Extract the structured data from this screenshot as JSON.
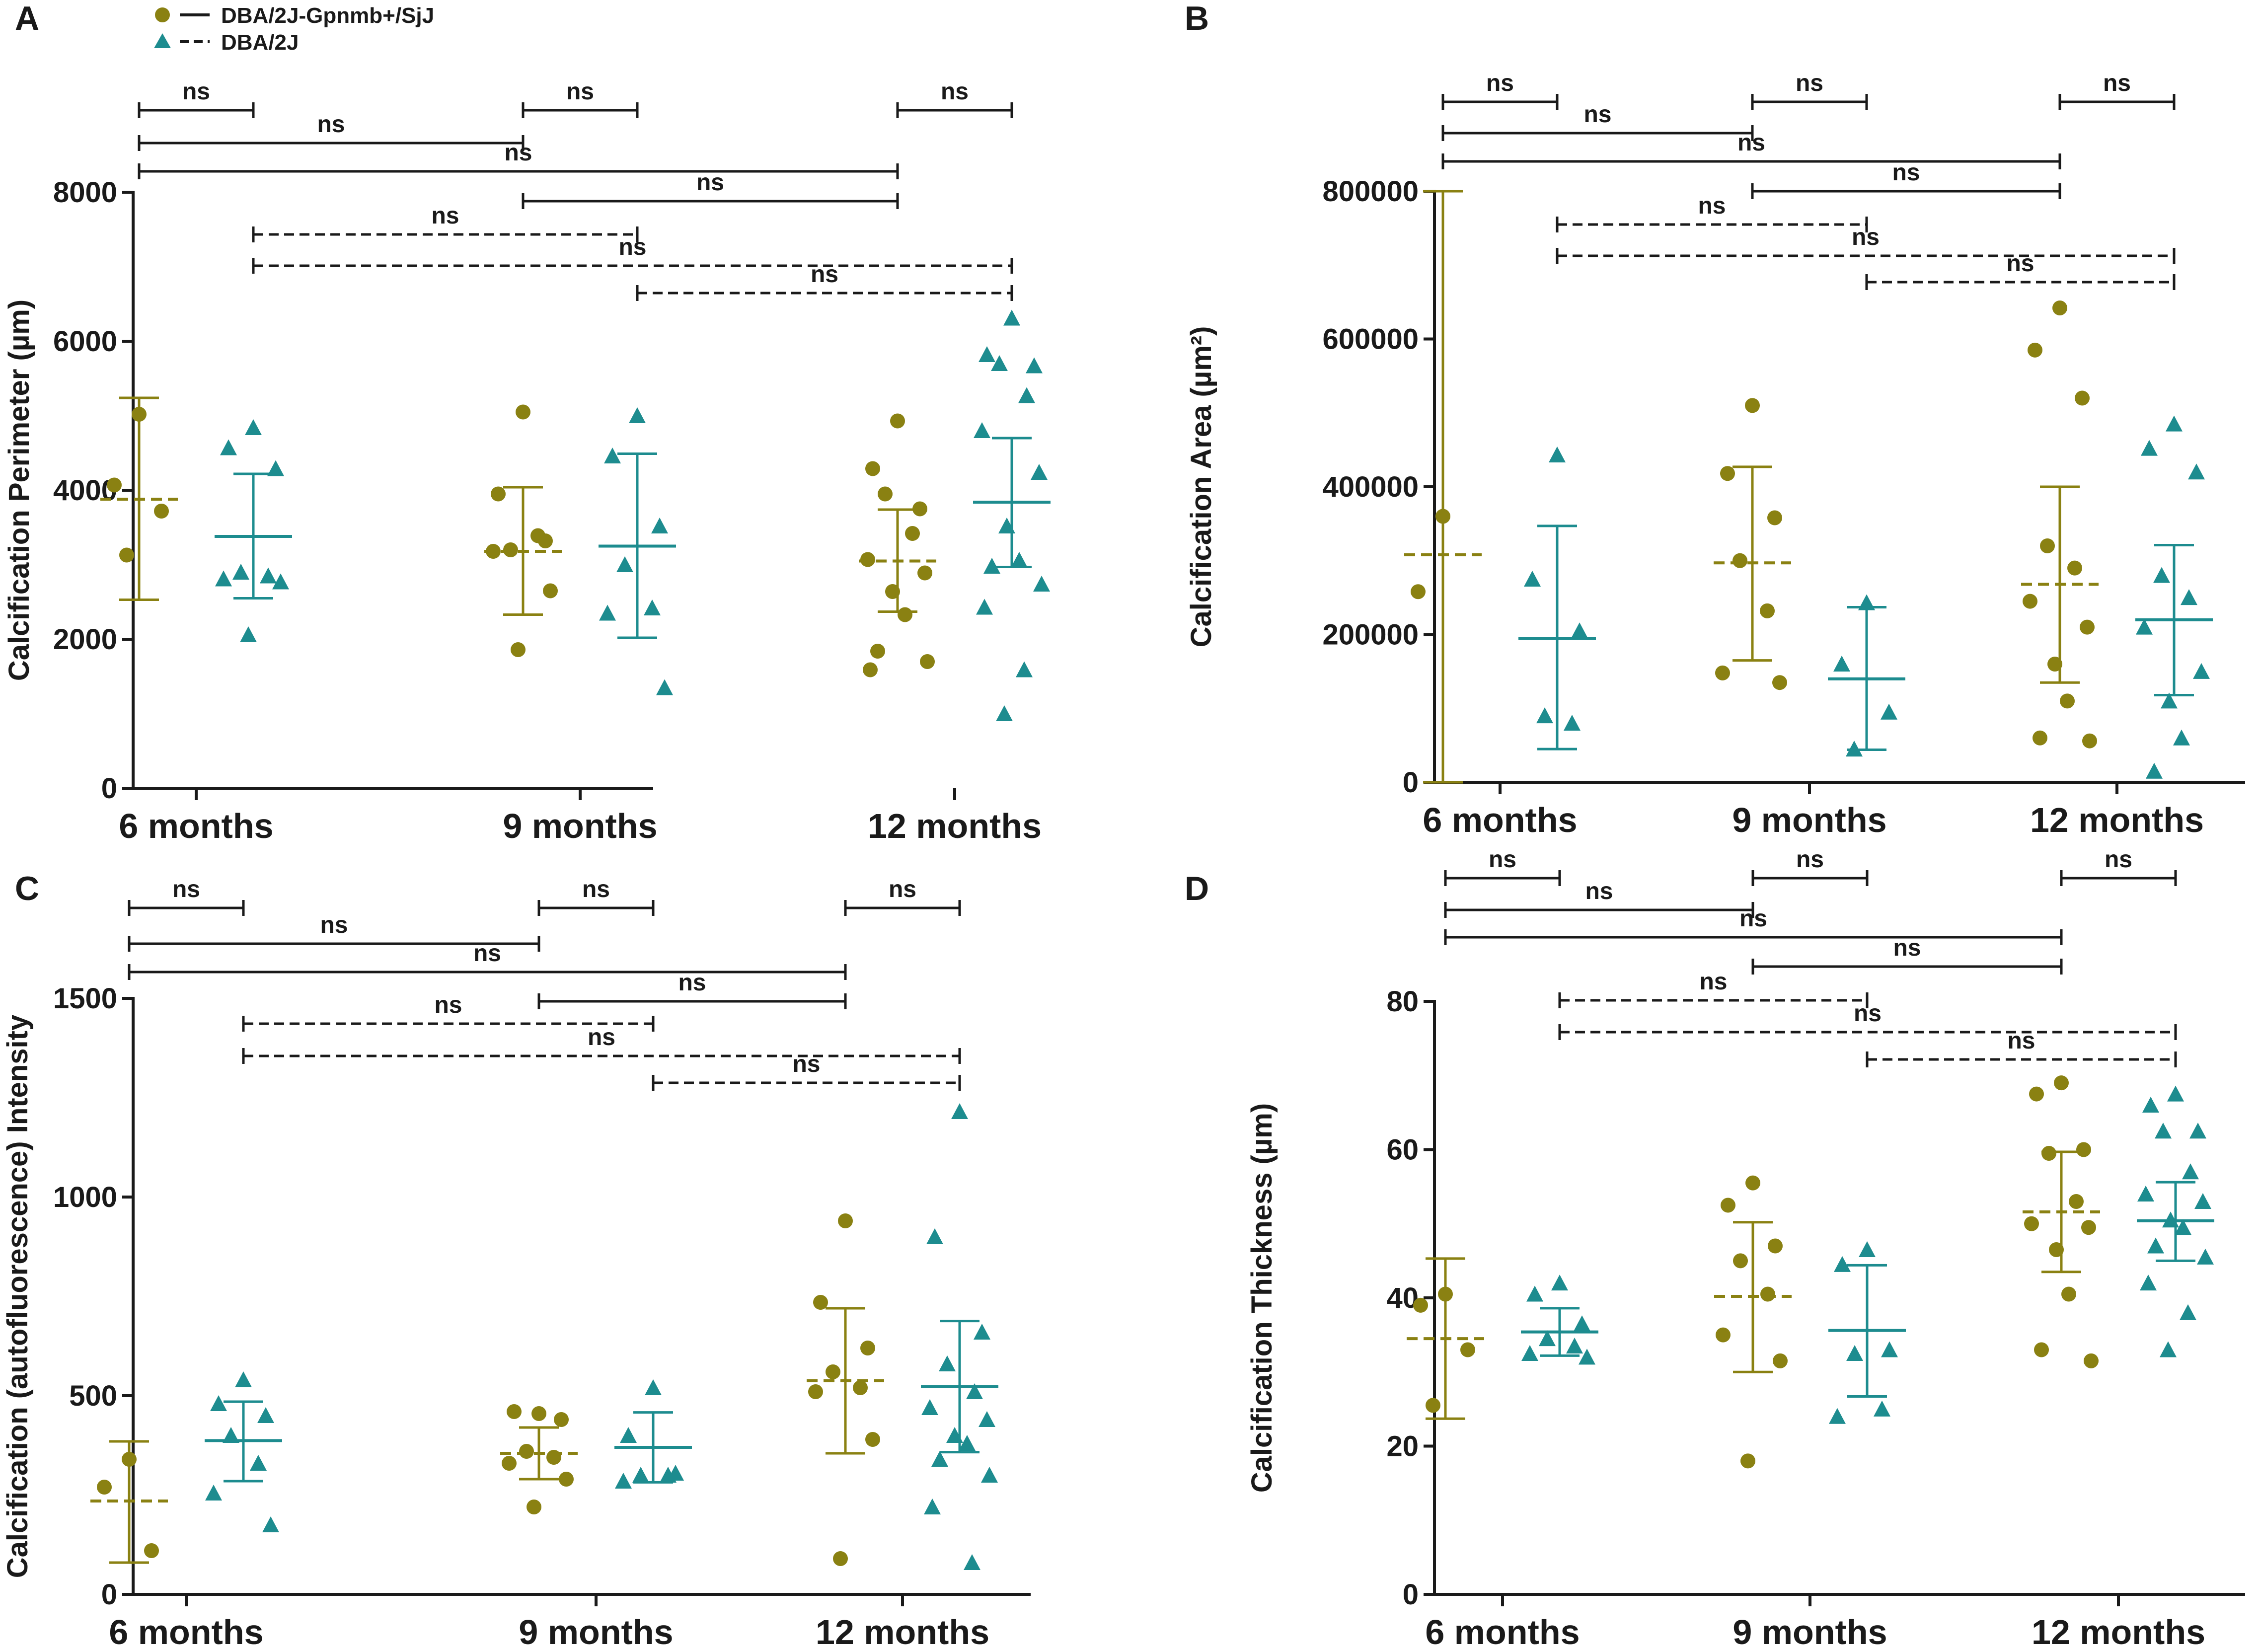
{
  "colors": {
    "olive": "#8a8112",
    "teal": "#1d8c8f",
    "axis": "#1a1a1a"
  },
  "legend": [
    {
      "label": "DBA/2J-Gpnmb+/SjJ",
      "marker": "circle",
      "line": "solid",
      "color": "#8a8112"
    },
    {
      "label": "DBA/2J",
      "marker": "triangle",
      "line": "dashed",
      "color": "#1d8c8f"
    }
  ],
  "chart_data": [
    {
      "panel": "A",
      "type": "scatter",
      "ylabel": "Calcification Perimeter (µm)",
      "ylim": [
        0,
        8000
      ],
      "yticks": [
        0,
        2000,
        4000,
        6000,
        8000
      ],
      "categories": [
        "6 months",
        "9 months",
        "12 months"
      ],
      "series": [
        {
          "name": "DBA/2J-Gpnmb+/SjJ",
          "marker": "circle",
          "mean_style": "dashed",
          "groups": [
            {
              "points": [
                5020,
                4070,
                3720,
                3130
              ],
              "mean": 3880,
              "sd": [
                2530,
                5240
              ]
            },
            {
              "points": [
                5050,
                3950,
                3320,
                3200,
                3390,
                3180,
                2650,
                1860
              ],
              "mean": 3180,
              "sd": [
                2330,
                4040
              ]
            },
            {
              "points": [
                4930,
                4290,
                3750,
                3950,
                3420,
                3070,
                2890,
                2640,
                2330,
                1840,
                1700,
                1590
              ],
              "mean": 3050,
              "sd": [
                2370,
                3740
              ]
            }
          ]
        },
        {
          "name": "DBA/2J",
          "marker": "triangle",
          "mean_style": "solid",
          "groups": [
            {
              "points": [
                4840,
                4570,
                4290,
                2900,
                2850,
                2810,
                2770,
                2060
              ],
              "mean": 3380,
              "sd": [
                2550,
                4220
              ]
            },
            {
              "points": [
                5000,
                4460,
                3520,
                3000,
                2420,
                2350,
                1350
              ],
              "mean": 3250,
              "sd": [
                2020,
                4490
              ]
            },
            {
              "points": [
                6310,
                5820,
                5670,
                5700,
                5270,
                4800,
                4240,
                3520,
                3060,
                2980,
                2740,
                2430,
                1590,
                1000
              ],
              "mean": 3840,
              "sd": [
                2970,
                4700
              ]
            }
          ]
        }
      ],
      "comparisons": [
        {
          "from": "6 months · DBA/2J-Gpnmb+/SjJ",
          "to": "6 months · DBA/2J",
          "label": "ns",
          "style": "solid"
        },
        {
          "from": "9 months · DBA/2J-Gpnmb+/SjJ",
          "to": "9 months · DBA/2J",
          "label": "ns",
          "style": "solid"
        },
        {
          "from": "12 months · DBA/2J-Gpnmb+/SjJ",
          "to": "12 months · DBA/2J",
          "label": "ns",
          "style": "solid"
        },
        {
          "from": "6 months · DBA/2J-Gpnmb+/SjJ",
          "to": "9 months · DBA/2J-Gpnmb+/SjJ",
          "label": "ns",
          "style": "solid"
        },
        {
          "from": "6 months · DBA/2J-Gpnmb+/SjJ",
          "to": "12 months · DBA/2J-Gpnmb+/SjJ",
          "label": "ns",
          "style": "solid"
        },
        {
          "from": "9 months · DBA/2J-Gpnmb+/SjJ",
          "to": "12 months · DBA/2J-Gpnmb+/SjJ",
          "label": "ns",
          "style": "solid"
        },
        {
          "from": "6 months · DBA/2J",
          "to": "9 months · DBA/2J",
          "label": "ns",
          "style": "dashed"
        },
        {
          "from": "6 months · DBA/2J",
          "to": "12 months · DBA/2J",
          "label": "ns",
          "style": "dashed"
        },
        {
          "from": "9 months · DBA/2J",
          "to": "12 months · DBA/2J",
          "label": "ns",
          "style": "dashed"
        }
      ]
    },
    {
      "panel": "B",
      "type": "scatter",
      "ylabel": "Calcification Area (µm²)",
      "ylim": [
        0,
        800000
      ],
      "yticks": [
        0,
        200000,
        400000,
        600000,
        800000
      ],
      "categories": [
        "6 months",
        "9 months",
        "12 months"
      ],
      "series": [
        {
          "name": "DBA/2J-Gpnmb+/SjJ",
          "marker": "circle",
          "mean_style": "dashed",
          "groups": [
            {
              "points": [
                360000,
                258000
              ],
              "mean": 308000,
              "sd": [
                0,
                800000
              ]
            },
            {
              "points": [
                510000,
                418000,
                358000,
                300000,
                232000,
                148000,
                135000
              ],
              "mean": 297000,
              "sd": [
                165000,
                427000
              ]
            },
            {
              "points": [
                642000,
                585000,
                520000,
                320000,
                290000,
                245000,
                210000,
                160000,
                110000,
                60000,
                56000
              ],
              "mean": 268000,
              "sd": [
                135000,
                400000
              ]
            }
          ]
        },
        {
          "name": "DBA/2J",
          "marker": "triangle",
          "mean_style": "solid",
          "groups": [
            {
              "points": [
                443000,
                275000,
                205000,
                90000,
                80000
              ],
              "mean": 195000,
              "sd": [
                45000,
                347000
              ]
            },
            {
              "points": [
                243000,
                160000,
                95000,
                45000
              ],
              "mean": 140000,
              "sd": [
                44000,
                237000
              ]
            },
            {
              "points": [
                485000,
                452000,
                420000,
                280000,
                250000,
                210000,
                150000,
                110000,
                60000,
                15000
              ],
              "mean": 220000,
              "sd": [
                118000,
                321000
              ]
            }
          ]
        }
      ],
      "comparisons": [
        {
          "from": "6 months · DBA/2J-Gpnmb+/SjJ",
          "to": "6 months · DBA/2J",
          "label": "ns",
          "style": "solid"
        },
        {
          "from": "9 months · DBA/2J-Gpnmb+/SjJ",
          "to": "9 months · DBA/2J",
          "label": "ns",
          "style": "solid"
        },
        {
          "from": "12 months · DBA/2J-Gpnmb+/SjJ",
          "to": "12 months · DBA/2J",
          "label": "ns",
          "style": "solid"
        },
        {
          "from": "6 months · DBA/2J-Gpnmb+/SjJ",
          "to": "9 months · DBA/2J-Gpnmb+/SjJ",
          "label": "ns",
          "style": "solid"
        },
        {
          "from": "6 months · DBA/2J-Gpnmb+/SjJ",
          "to": "12 months · DBA/2J-Gpnmb+/SjJ",
          "label": "ns",
          "style": "solid"
        },
        {
          "from": "9 months · DBA/2J-Gpnmb+/SjJ",
          "to": "12 months · DBA/2J-Gpnmb+/SjJ",
          "label": "ns",
          "style": "solid"
        },
        {
          "from": "6 months · DBA/2J",
          "to": "9 months · DBA/2J",
          "label": "ns",
          "style": "dashed"
        },
        {
          "from": "6 months · DBA/2J",
          "to": "12 months · DBA/2J",
          "label": "ns",
          "style": "dashed"
        },
        {
          "from": "9 months · DBA/2J",
          "to": "12 months · DBA/2J",
          "label": "ns",
          "style": "dashed"
        }
      ]
    },
    {
      "panel": "C",
      "type": "scatter",
      "ylabel": "Calcification (autofluorescence) Intensity",
      "ylim": [
        0,
        1500
      ],
      "yticks": [
        0,
        500,
        1000,
        1500
      ],
      "categories": [
        "6 months",
        "9 months",
        "12 months"
      ],
      "series": [
        {
          "name": "DBA/2J-Gpnmb+/SjJ",
          "marker": "circle",
          "mean_style": "dashed",
          "groups": [
            {
              "points": [
                340,
                270,
                110
              ],
              "mean": 235,
              "sd": [
                80,
                385
              ]
            },
            {
              "points": [
                455,
                460,
                440,
                360,
                345,
                330,
                290,
                220
              ],
              "mean": 355,
              "sd": [
                290,
                420
              ]
            },
            {
              "points": [
                940,
                735,
                620,
                560,
                520,
                510,
                390,
                90
              ],
              "mean": 538,
              "sd": [
                355,
                720
              ]
            }
          ]
        },
        {
          "name": "DBA/2J",
          "marker": "triangle",
          "mean_style": "solid",
          "groups": [
            {
              "points": [
                540,
                480,
                450,
                400,
                330,
                255,
                175
              ],
              "mean": 387,
              "sd": [
                285,
                485
              ]
            },
            {
              "points": [
                520,
                400,
                305,
                300,
                300,
                285
              ],
              "mean": 370,
              "sd": [
                282,
                458
              ]
            },
            {
              "points": [
                1215,
                900,
                660,
                580,
                510,
                470,
                440,
                400,
                380,
                340,
                300,
                220,
                80
              ],
              "mean": 523,
              "sd": [
                358,
                688
              ]
            }
          ]
        }
      ],
      "comparisons": [
        {
          "from": "6 months · DBA/2J-Gpnmb+/SjJ",
          "to": "6 months · DBA/2J",
          "label": "ns",
          "style": "solid"
        },
        {
          "from": "9 months · DBA/2J-Gpnmb+/SjJ",
          "to": "9 months · DBA/2J",
          "label": "ns",
          "style": "solid"
        },
        {
          "from": "12 months · DBA/2J-Gpnmb+/SjJ",
          "to": "12 months · DBA/2J",
          "label": "ns",
          "style": "solid"
        },
        {
          "from": "6 months · DBA/2J-Gpnmb+/SjJ",
          "to": "9 months · DBA/2J-Gpnmb+/SjJ",
          "label": "ns",
          "style": "solid"
        },
        {
          "from": "6 months · DBA/2J-Gpnmb+/SjJ",
          "to": "12 months · DBA/2J-Gpnmb+/SjJ",
          "label": "ns",
          "style": "solid"
        },
        {
          "from": "9 months · DBA/2J-Gpnmb+/SjJ",
          "to": "12 months · DBA/2J-Gpnmb+/SjJ",
          "label": "ns",
          "style": "solid"
        },
        {
          "from": "6 months · DBA/2J",
          "to": "9 months · DBA/2J",
          "label": "ns",
          "style": "dashed"
        },
        {
          "from": "6 months · DBA/2J",
          "to": "12 months · DBA/2J",
          "label": "ns",
          "style": "dashed"
        },
        {
          "from": "9 months · DBA/2J",
          "to": "12 months · DBA/2J",
          "label": "ns",
          "style": "dashed"
        }
      ]
    },
    {
      "panel": "D",
      "type": "scatter",
      "ylabel": "Calcification Thickness (µm)",
      "ylim": [
        0,
        80
      ],
      "yticks": [
        0,
        20,
        40,
        60,
        80
      ],
      "categories": [
        "6 months",
        "9 months",
        "12 months"
      ],
      "series": [
        {
          "name": "DBA/2J-Gpnmb+/SjJ",
          "marker": "circle",
          "mean_style": "dashed",
          "groups": [
            {
              "points": [
                40.5,
                39,
                33,
                25.5
              ],
              "mean": 34.5,
              "sd": [
                23.7,
                45.3
              ]
            },
            {
              "points": [
                55.5,
                52.5,
                47,
                45,
                40.5,
                35,
                31.5,
                18
              ],
              "mean": 40.2,
              "sd": [
                30,
                50.2
              ]
            },
            {
              "points": [
                69,
                67.5,
                60,
                59.5,
                53,
                50,
                49.5,
                46.5,
                40.5,
                33,
                31.5
              ],
              "mean": 51.6,
              "sd": [
                43.5,
                59.7
              ]
            }
          ]
        },
        {
          "name": "DBA/2J",
          "marker": "triangle",
          "mean_style": "solid",
          "groups": [
            {
              "points": [
                42,
                40.5,
                36.5,
                34.5,
                33.5,
                32.5,
                32
              ],
              "mean": 35.4,
              "sd": [
                32.2,
                38.6
              ]
            },
            {
              "points": [
                46.5,
                44.5,
                33,
                32.5,
                25,
                24
              ],
              "mean": 35.6,
              "sd": [
                26.7,
                44.4
              ]
            },
            {
              "points": [
                67.5,
                66,
                62.5,
                62.5,
                57,
                54,
                53,
                50.5,
                49.5,
                47,
                45.5,
                42,
                38,
                33
              ],
              "mean": 50.4,
              "sd": [
                45,
                55.6
              ]
            }
          ]
        }
      ],
      "comparisons": [
        {
          "from": "6 months · DBA/2J-Gpnmb+/SjJ",
          "to": "6 months · DBA/2J",
          "label": "ns",
          "style": "solid"
        },
        {
          "from": "9 months · DBA/2J-Gpnmb+/SjJ",
          "to": "9 months · DBA/2J",
          "label": "ns",
          "style": "solid"
        },
        {
          "from": "12 months · DBA/2J-Gpnmb+/SjJ",
          "to": "12 months · DBA/2J",
          "label": "ns",
          "style": "solid"
        },
        {
          "from": "6 months · DBA/2J-Gpnmb+/SjJ",
          "to": "9 months · DBA/2J-Gpnmb+/SjJ",
          "label": "ns",
          "style": "solid"
        },
        {
          "from": "6 months · DBA/2J-Gpnmb+/SjJ",
          "to": "12 months · DBA/2J-Gpnmb+/SjJ",
          "label": "ns",
          "style": "solid"
        },
        {
          "from": "9 months · DBA/2J-Gpnmb+/SjJ",
          "to": "12 months · DBA/2J-Gpnmb+/SjJ",
          "label": "ns",
          "style": "solid"
        },
        {
          "from": "6 months · DBA/2J",
          "to": "9 months · DBA/2J",
          "label": "ns",
          "style": "dashed"
        },
        {
          "from": "6 months · DBA/2J",
          "to": "12 months · DBA/2J",
          "label": "ns",
          "style": "dashed"
        },
        {
          "from": "9 months · DBA/2J",
          "to": "12 months · DBA/2J",
          "label": "ns",
          "style": "dashed"
        }
      ]
    }
  ]
}
